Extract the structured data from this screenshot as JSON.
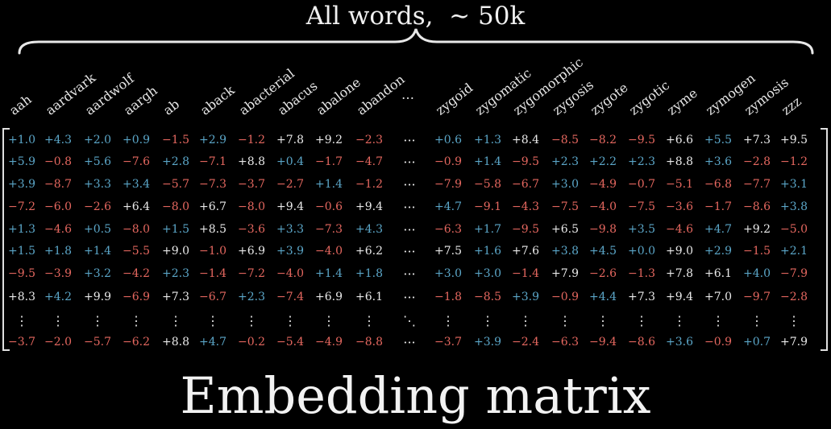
{
  "top_label": "All words,  ∼ 50k",
  "title": "Embedding matrix",
  "colors": {
    "positive_strong": "#e9e9e9",
    "positive": "#5ba6c8",
    "negative": "#e4675f",
    "background": "#000000"
  },
  "column_headers": [
    "aah",
    "aardvark",
    "aardwolf",
    "aargh",
    "ab",
    "aback",
    "abacterial",
    "abacus",
    "abalone",
    "abandon",
    "…",
    "zygoid",
    "zygomatic",
    "zygomorphic",
    "zygosis",
    "zygote",
    "zygotic",
    "zyme",
    "zymogen",
    "zymosis",
    "zzz"
  ],
  "rows": [
    [
      "+1.0",
      "+4.3",
      "+2.0",
      "+0.9",
      "−1.5",
      "+2.9",
      "−1.2",
      "+7.8",
      "+9.2",
      "−2.3",
      "···",
      "+0.6",
      "+1.3",
      "+8.4",
      "−8.5",
      "−8.2",
      "−9.5",
      "+6.6",
      "+5.5",
      "+7.3",
      "+9.5"
    ],
    [
      "+5.9",
      "−0.8",
      "+5.6",
      "−7.6",
      "+2.8",
      "−7.1",
      "+8.8",
      "+0.4",
      "−1.7",
      "−4.7",
      "···",
      "−0.9",
      "+1.4",
      "−9.5",
      "+2.3",
      "+2.2",
      "+2.3",
      "+8.8",
      "+3.6",
      "−2.8",
      "−1.2"
    ],
    [
      "+3.9",
      "−8.7",
      "+3.3",
      "+3.4",
      "−5.7",
      "−7.3",
      "−3.7",
      "−2.7",
      "+1.4",
      "−1.2",
      "···",
      "−7.9",
      "−5.8",
      "−6.7",
      "+3.0",
      "−4.9",
      "−0.7",
      "−5.1",
      "−6.8",
      "−7.7",
      "+3.1"
    ],
    [
      "−7.2",
      "−6.0",
      "−2.6",
      "+6.4",
      "−8.0",
      "+6.7",
      "−8.0",
      "+9.4",
      "−0.6",
      "+9.4",
      "···",
      "+4.7",
      "−9.1",
      "−4.3",
      "−7.5",
      "−4.0",
      "−7.5",
      "−3.6",
      "−1.7",
      "−8.6",
      "+3.8"
    ],
    [
      "+1.3",
      "−4.6",
      "+0.5",
      "−8.0",
      "+1.5",
      "+8.5",
      "−3.6",
      "+3.3",
      "−7.3",
      "+4.3",
      "···",
      "−6.3",
      "+1.7",
      "−9.5",
      "+6.5",
      "−9.8",
      "+3.5",
      "−4.6",
      "+4.7",
      "+9.2",
      "−5.0"
    ],
    [
      "+1.5",
      "+1.8",
      "+1.4",
      "−5.5",
      "+9.0",
      "−1.0",
      "+6.9",
      "+3.9",
      "−4.0",
      "+6.2",
      "···",
      "+7.5",
      "+1.6",
      "+7.6",
      "+3.8",
      "+4.5",
      "+0.0",
      "+9.0",
      "+2.9",
      "−1.5",
      "+2.1"
    ],
    [
      "−9.5",
      "−3.9",
      "+3.2",
      "−4.2",
      "+2.3",
      "−1.4",
      "−7.2",
      "−4.0",
      "+1.4",
      "+1.8",
      "···",
      "+3.0",
      "+3.0",
      "−1.4",
      "+7.9",
      "−2.6",
      "−1.3",
      "+7.8",
      "+6.1",
      "+4.0",
      "−7.9"
    ],
    [
      "+8.3",
      "+4.2",
      "+9.9",
      "−6.9",
      "+7.3",
      "−6.7",
      "+2.3",
      "−7.4",
      "+6.9",
      "+6.1",
      "···",
      "−1.8",
      "−8.5",
      "+3.9",
      "−0.9",
      "+4.4",
      "+7.3",
      "+9.4",
      "+7.0",
      "−9.7",
      "−2.8"
    ],
    [
      "⋮",
      "⋮",
      "⋮",
      "⋮",
      "⋮",
      "⋮",
      "⋮",
      "⋮",
      "⋮",
      "⋮",
      "⋱",
      "⋮",
      "⋮",
      "⋮",
      "⋮",
      "⋮",
      "⋮",
      "⋮",
      "⋮",
      "⋮",
      "⋮"
    ],
    [
      "−3.7",
      "−2.0",
      "−5.7",
      "−6.2",
      "+8.8",
      "+4.7",
      "−0.2",
      "−5.4",
      "−4.9",
      "−8.8",
      "···",
      "−3.7",
      "+3.9",
      "−2.4",
      "−6.3",
      "−9.4",
      "−8.6",
      "+3.6",
      "−0.9",
      "+0.7",
      "+7.9"
    ]
  ]
}
